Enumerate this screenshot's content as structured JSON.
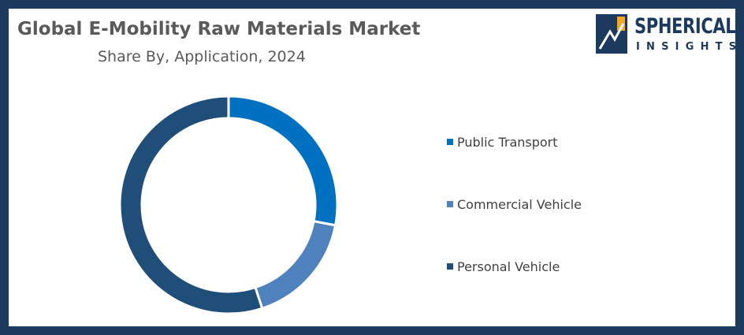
{
  "header": {
    "title": "Global E-Mobility Raw Materials Market",
    "subtitle": "Share By, Application, 2024"
  },
  "logo": {
    "line1": "SPHERICAL",
    "line2": "INSIGHTS",
    "colors": {
      "navy": "#1c3a5e",
      "accent": "#f5a623"
    }
  },
  "chart_data": {
    "type": "pie",
    "title": "Global E-Mobility Raw Materials Market",
    "subtitle": "Share By, Application, 2024",
    "donut": true,
    "legend_position": "right",
    "categories": [
      "Public Transport",
      "Commercial Vehicle",
      "Personal Vehicle"
    ],
    "values": [
      28,
      17,
      55
    ],
    "colors": [
      "#0070c0",
      "#4f81bd",
      "#1f4e79"
    ]
  }
}
